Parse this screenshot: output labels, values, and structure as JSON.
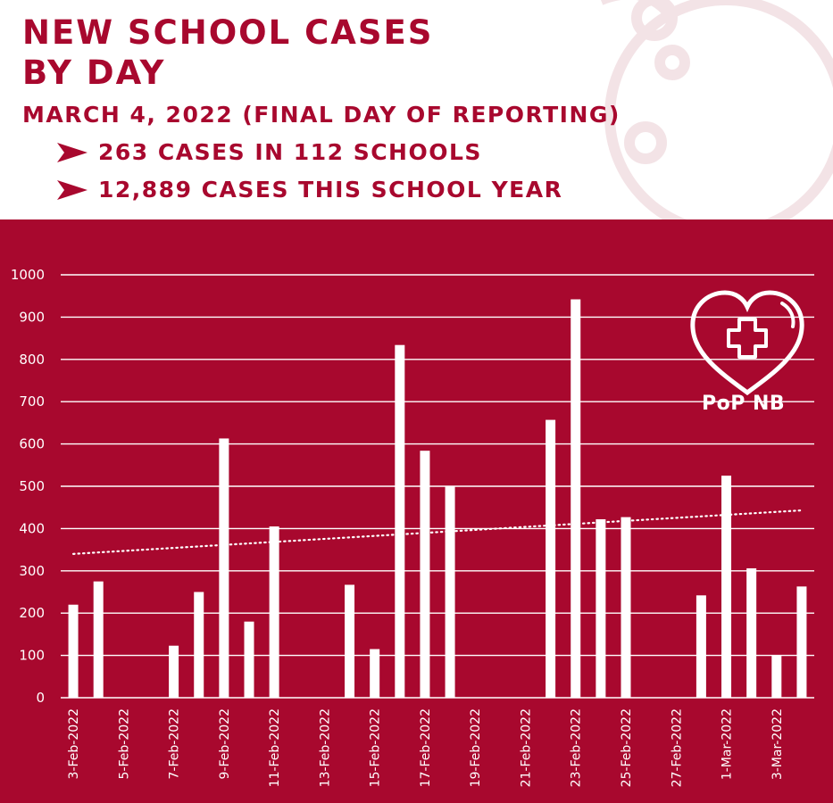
{
  "header": {
    "title_line1": "NEW SCHOOL CASES",
    "title_line2": "BY DAY",
    "subtitle": "MARCH 4, 2022 (FINAL DAY OF REPORTING)",
    "bullets": [
      "263 CASES IN 112 SCHOOLS",
      "12,889 CASES THIS SCHOOL YEAR"
    ]
  },
  "logo": {
    "text": "PoP NB",
    "icon": "heart-plus-icon"
  },
  "colors": {
    "brand": "#a8082e",
    "bars": "#ffffff",
    "grid": "#ffffff",
    "background": "#ffffff"
  },
  "chart_data": {
    "type": "bar",
    "title": "NEW SCHOOL CASES BY DAY",
    "xlabel": "",
    "ylabel": "",
    "ylim": [
      0,
      1000
    ],
    "yticks": [
      0,
      100,
      200,
      300,
      400,
      500,
      600,
      700,
      800,
      900,
      1000
    ],
    "grid": true,
    "trendline": {
      "type": "linear",
      "style": "dotted",
      "start": 340,
      "end": 443
    },
    "categories": [
      "3-Feb-2022",
      "4-Feb-2022",
      "5-Feb-2022",
      "6-Feb-2022",
      "7-Feb-2022",
      "8-Feb-2022",
      "9-Feb-2022",
      "10-Feb-2022",
      "11-Feb-2022",
      "12-Feb-2022",
      "13-Feb-2022",
      "14-Feb-2022",
      "15-Feb-2022",
      "16-Feb-2022",
      "17-Feb-2022",
      "18-Feb-2022",
      "19-Feb-2022",
      "20-Feb-2022",
      "21-Feb-2022",
      "22-Feb-2022",
      "23-Feb-2022",
      "24-Feb-2022",
      "25-Feb-2022",
      "26-Feb-2022",
      "27-Feb-2022",
      "28-Feb-2022",
      "1-Mar-2022",
      "2-Mar-2022",
      "3-Mar-2022",
      "4-Mar-2022"
    ],
    "tick_labels": [
      "3-Feb-2022",
      "",
      "5-Feb-2022",
      "",
      "7-Feb-2022",
      "",
      "9-Feb-2022",
      "",
      "11-Feb-2022",
      "",
      "13-Feb-2022",
      "",
      "15-Feb-2022",
      "",
      "17-Feb-2022",
      "",
      "19-Feb-2022",
      "",
      "21-Feb-2022",
      "",
      "23-Feb-2022",
      "",
      "25-Feb-2022",
      "",
      "27-Feb-2022",
      "",
      "1-Mar-2022",
      "",
      "3-Mar-2022",
      ""
    ],
    "values": [
      220,
      275,
      0,
      0,
      123,
      250,
      613,
      180,
      405,
      0,
      0,
      267,
      115,
      834,
      584,
      500,
      0,
      0,
      0,
      657,
      942,
      422,
      427,
      0,
      0,
      242,
      525,
      306,
      100,
      263
    ]
  }
}
